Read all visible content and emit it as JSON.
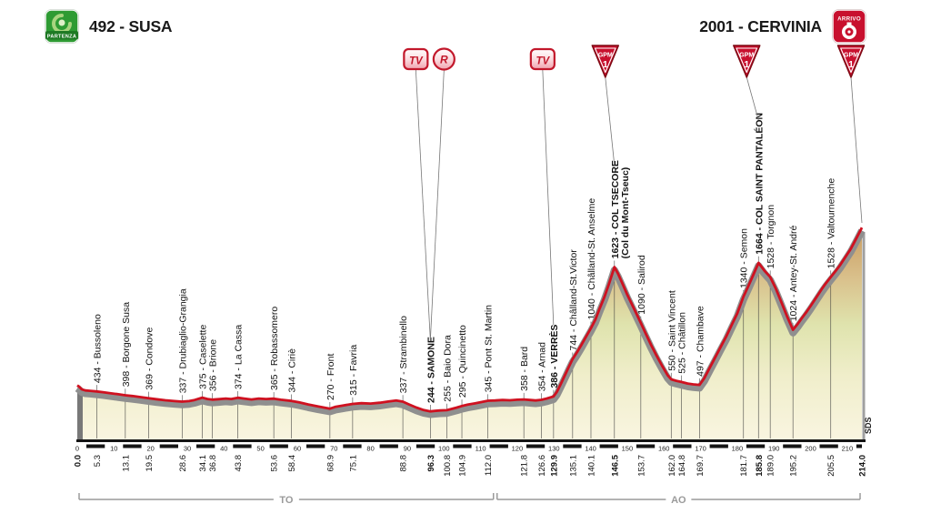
{
  "header": {
    "start_title": "492 - SUSA",
    "finish_title": "2001 - CERVINIA",
    "start_badge_label": "PARTENZA",
    "finish_badge_label": "ARRIVO"
  },
  "footer": {
    "regions": [
      {
        "label": "TO",
        "from_km": 0,
        "to_km": 114
      },
      {
        "label": "AO",
        "from_km": 114,
        "to_km": 214
      }
    ],
    "sds_label": "SDS"
  },
  "chart_data": {
    "type": "area",
    "title": "",
    "x_unit": "km",
    "y_unit": "m",
    "xlim": [
      0,
      214
    ],
    "ylim": [
      0,
      2001
    ],
    "x_ticks": [
      0,
      10,
      20,
      30,
      40,
      50,
      60,
      70,
      80,
      90,
      100,
      110,
      120,
      130,
      140,
      150,
      160,
      170,
      180,
      190,
      200,
      210
    ],
    "colors": {
      "line": "#cf1120",
      "road": "#8f8f8f",
      "axis": "#141414",
      "label": "#111111",
      "region": "#9a9a9a",
      "marker_red": "#c8102e",
      "fill_stops": [
        [
          "0",
          "#c99d62"
        ],
        [
          "0.22",
          "#d9bf8a"
        ],
        [
          "0.45",
          "#dfe3ad"
        ],
        [
          "0.7",
          "#f0eecb"
        ],
        [
          "1",
          "#f9f5e0"
        ]
      ]
    },
    "waypoints": [
      {
        "km": 0.0,
        "elev": 492,
        "name": "",
        "label": false,
        "km_bold": true
      },
      {
        "km": 5.3,
        "elev": 434,
        "name": "Bussoleno"
      },
      {
        "km": 13.1,
        "elev": 398,
        "name": "Borgone Susa"
      },
      {
        "km": 19.5,
        "elev": 369,
        "name": "Condove"
      },
      {
        "km": 28.6,
        "elev": 337,
        "name": "Drubiaglio-Grangia"
      },
      {
        "km": 34.1,
        "elev": 375,
        "name": "Caselette"
      },
      {
        "km": 36.8,
        "elev": 356,
        "name": "Brione"
      },
      {
        "km": 43.8,
        "elev": 374,
        "name": "La Cassa"
      },
      {
        "km": 53.6,
        "elev": 365,
        "name": "Robassomero"
      },
      {
        "km": 58.4,
        "elev": 344,
        "name": "Ciriè"
      },
      {
        "km": 68.9,
        "elev": 270,
        "name": "Front"
      },
      {
        "km": 75.1,
        "elev": 315,
        "name": "Favria"
      },
      {
        "km": 88.8,
        "elev": 337,
        "name": "Strambinello"
      },
      {
        "km": 96.3,
        "elev": 244,
        "name": "SAMONE",
        "bold": true,
        "km_bold": true
      },
      {
        "km": 100.8,
        "elev": 255,
        "name": "Baio Dora"
      },
      {
        "km": 104.9,
        "elev": 295,
        "name": "Quincinetto"
      },
      {
        "km": 112.0,
        "elev": 345,
        "name": "Pont St. Martin"
      },
      {
        "km": 121.8,
        "elev": 358,
        "name": "Bard"
      },
      {
        "km": 126.6,
        "elev": 354,
        "name": "Arnad"
      },
      {
        "km": 129.9,
        "elev": 386,
        "name": "VERRÈS",
        "bold": true,
        "km_bold": true
      },
      {
        "km": 135.1,
        "elev": 744,
        "name": "Châlland-St.Victor"
      },
      {
        "km": 140.1,
        "elev": 1040,
        "name": "Châlland-St. Anselme"
      },
      {
        "km": 146.5,
        "elev": 1623,
        "name": "COL TSECORE",
        "name2": "(Col du Mont-Tseuc)",
        "bold": true,
        "km_bold": true
      },
      {
        "km": 153.7,
        "elev": 1090,
        "name": "Salirod"
      },
      {
        "km": 162.0,
        "elev": 550,
        "name": "Saint Vincent"
      },
      {
        "km": 164.8,
        "elev": 525,
        "name": "Châtillon"
      },
      {
        "km": 169.7,
        "elev": 497,
        "name": "Chambave"
      },
      {
        "km": 181.7,
        "elev": 1340,
        "name": "Semon"
      },
      {
        "km": 185.8,
        "elev": 1664,
        "name": "COL SAINT PANTALÉON",
        "bold": true,
        "km_bold": true
      },
      {
        "km": 189.0,
        "elev": 1528,
        "name": "Torgnon"
      },
      {
        "km": 195.2,
        "elev": 1024,
        "name": "Antey-St. André"
      },
      {
        "km": 205.5,
        "elev": 1528,
        "name": "Valtournenche"
      },
      {
        "km": 214.0,
        "elev": 2001,
        "name": "",
        "label": false,
        "km_bold": true
      }
    ],
    "markers": [
      {
        "type": "tv",
        "label": "TV",
        "km": 96.3,
        "dx": -16
      },
      {
        "type": "r",
        "label": "R",
        "km": 96.3,
        "dx": 15
      },
      {
        "type": "tv",
        "label": "TV",
        "km": 129.9,
        "dx": -12
      },
      {
        "type": "gpm",
        "label": "GPM",
        "sub": "1",
        "km": 146.5,
        "dx": -10
      },
      {
        "type": "gpm",
        "label": "GPM",
        "sub": "1",
        "km": 185.8,
        "dx": -13
      },
      {
        "type": "gpm",
        "label": "GPM",
        "sub": "1",
        "km": 214.0,
        "dx": -12
      }
    ],
    "profile": [
      [
        0,
        492
      ],
      [
        0.6,
        478
      ],
      [
        1.2,
        455
      ],
      [
        2.2,
        444
      ],
      [
        3.5,
        440
      ],
      [
        5.3,
        434
      ],
      [
        7,
        427
      ],
      [
        9,
        418
      ],
      [
        11,
        408
      ],
      [
        13.1,
        398
      ],
      [
        15,
        391
      ],
      [
        17,
        381
      ],
      [
        19.5,
        369
      ],
      [
        21.5,
        360
      ],
      [
        24,
        350
      ],
      [
        26.5,
        342
      ],
      [
        28.6,
        337
      ],
      [
        30.5,
        342
      ],
      [
        32,
        352
      ],
      [
        34.1,
        375
      ],
      [
        35.5,
        362
      ],
      [
        36.8,
        356
      ],
      [
        38.5,
        360
      ],
      [
        40.5,
        366
      ],
      [
        42,
        362
      ],
      [
        43.8,
        374
      ],
      [
        45.5,
        366
      ],
      [
        47.5,
        358
      ],
      [
        49.5,
        366
      ],
      [
        51.5,
        362
      ],
      [
        53.6,
        365
      ],
      [
        55.5,
        355
      ],
      [
        58.4,
        344
      ],
      [
        60.5,
        330
      ],
      [
        63,
        310
      ],
      [
        65.5,
        292
      ],
      [
        68.9,
        270
      ],
      [
        70.5,
        288
      ],
      [
        72.5,
        300
      ],
      [
        75.1,
        315
      ],
      [
        77.5,
        322
      ],
      [
        80,
        318
      ],
      [
        82.5,
        326
      ],
      [
        85,
        338
      ],
      [
        87,
        348
      ],
      [
        88.8,
        337
      ],
      [
        90.5,
        310
      ],
      [
        92.5,
        280
      ],
      [
        94.5,
        256
      ],
      [
        96.3,
        244
      ],
      [
        97.5,
        248
      ],
      [
        99,
        252
      ],
      [
        100.8,
        255
      ],
      [
        102,
        266
      ],
      [
        103.5,
        280
      ],
      [
        104.9,
        295
      ],
      [
        106.5,
        308
      ],
      [
        108.5,
        320
      ],
      [
        110.5,
        334
      ],
      [
        112,
        345
      ],
      [
        114,
        348
      ],
      [
        116,
        352
      ],
      [
        118,
        350
      ],
      [
        120,
        355
      ],
      [
        121.8,
        358
      ],
      [
        123.5,
        352
      ],
      [
        125,
        348
      ],
      [
        126.6,
        354
      ],
      [
        128,
        366
      ],
      [
        129.9,
        386
      ],
      [
        130.8,
        430
      ],
      [
        131.8,
        500
      ],
      [
        133,
        590
      ],
      [
        134,
        665
      ],
      [
        135.1,
        744
      ],
      [
        136.3,
        810
      ],
      [
        137.5,
        880
      ],
      [
        138.8,
        960
      ],
      [
        140.1,
        1040
      ],
      [
        141.3,
        1120
      ],
      [
        142.5,
        1230
      ],
      [
        143.8,
        1340
      ],
      [
        145,
        1460
      ],
      [
        146.5,
        1623
      ],
      [
        147.5,
        1560
      ],
      [
        148.5,
        1480
      ],
      [
        150,
        1360
      ],
      [
        151.5,
        1250
      ],
      [
        153.7,
        1090
      ],
      [
        155,
        990
      ],
      [
        156.5,
        880
      ],
      [
        158,
        775
      ],
      [
        159.5,
        680
      ],
      [
        161,
        590
      ],
      [
        162,
        550
      ],
      [
        163.4,
        536
      ],
      [
        164.8,
        525
      ],
      [
        166.5,
        510
      ],
      [
        168,
        502
      ],
      [
        169.7,
        497
      ],
      [
        171,
        560
      ],
      [
        172.5,
        660
      ],
      [
        174,
        760
      ],
      [
        175.5,
        860
      ],
      [
        177,
        960
      ],
      [
        178.5,
        1070
      ],
      [
        180,
        1180
      ],
      [
        181.7,
        1340
      ],
      [
        183,
        1440
      ],
      [
        184.4,
        1550
      ],
      [
        185.8,
        1664
      ],
      [
        187.4,
        1590
      ],
      [
        189,
        1528
      ],
      [
        190.5,
        1420
      ],
      [
        192,
        1290
      ],
      [
        193.5,
        1160
      ],
      [
        195.2,
        1024
      ],
      [
        196.5,
        1080
      ],
      [
        197.5,
        1130
      ],
      [
        198.8,
        1190
      ],
      [
        200,
        1250
      ],
      [
        201.5,
        1330
      ],
      [
        203,
        1410
      ],
      [
        204.2,
        1470
      ],
      [
        205.5,
        1528
      ],
      [
        206.8,
        1585
      ],
      [
        208,
        1640
      ],
      [
        209.5,
        1720
      ],
      [
        211,
        1800
      ],
      [
        212.5,
        1900
      ],
      [
        214,
        2001
      ]
    ]
  }
}
